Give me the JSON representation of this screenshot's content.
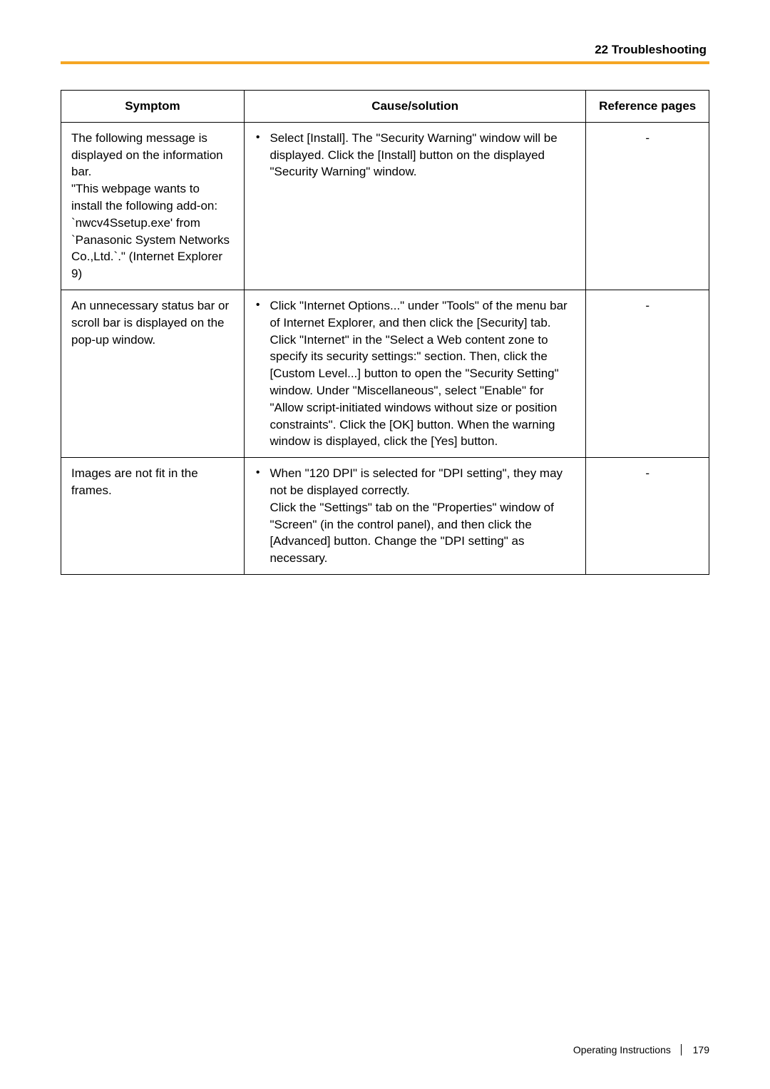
{
  "header": {
    "section_title": "22 Troubleshooting"
  },
  "colors": {
    "accent_rule": "#f5a623",
    "border": "#000000",
    "text": "#000000",
    "background": "#ffffff"
  },
  "table": {
    "headers": {
      "symptom": "Symptom",
      "cause": "Cause/solution",
      "reference": "Reference pages"
    },
    "rows": [
      {
        "symptom": "The following message is displayed on the information bar.\n\"This webpage wants to install the following add-on: `nwcv4Ssetup.exe' from `Panasonic System Networks Co.,Ltd.`.\" (Internet Explorer 9)",
        "cause_bullet": "•",
        "cause": "Select [Install]. The \"Security Warning\" window will be displayed. Click the [Install] button on the displayed \"Security Warning\" window.",
        "reference": "-"
      },
      {
        "symptom": "An unnecessary status bar or scroll bar is displayed on the pop-up window.",
        "cause_bullet": "•",
        "cause": "Click \"Internet Options...\" under \"Tools\" of the menu bar of Internet Explorer, and then click the [Security] tab. Click \"Internet\" in the \"Select a Web content zone to specify its security settings:\" section. Then, click the [Custom Level...] button to open the \"Security Setting\" window. Under \"Miscellaneous\", select \"Enable\" for \"Allow script-initiated windows without size or position constraints\". Click the [OK] button. When the warning window is displayed, click the [Yes] button.",
        "reference": "-"
      },
      {
        "symptom": "Images are not fit in the frames.",
        "cause_bullet": "•",
        "cause": "When \"120 DPI\" is selected for \"DPI setting\", they may not be displayed correctly.\nClick the \"Settings\" tab on the \"Properties\" window of \"Screen\" (in the control panel), and then click the [Advanced] button. Change the \"DPI setting\" as necessary.",
        "reference": "-"
      }
    ]
  },
  "footer": {
    "label": "Operating Instructions",
    "page_number": "179"
  }
}
